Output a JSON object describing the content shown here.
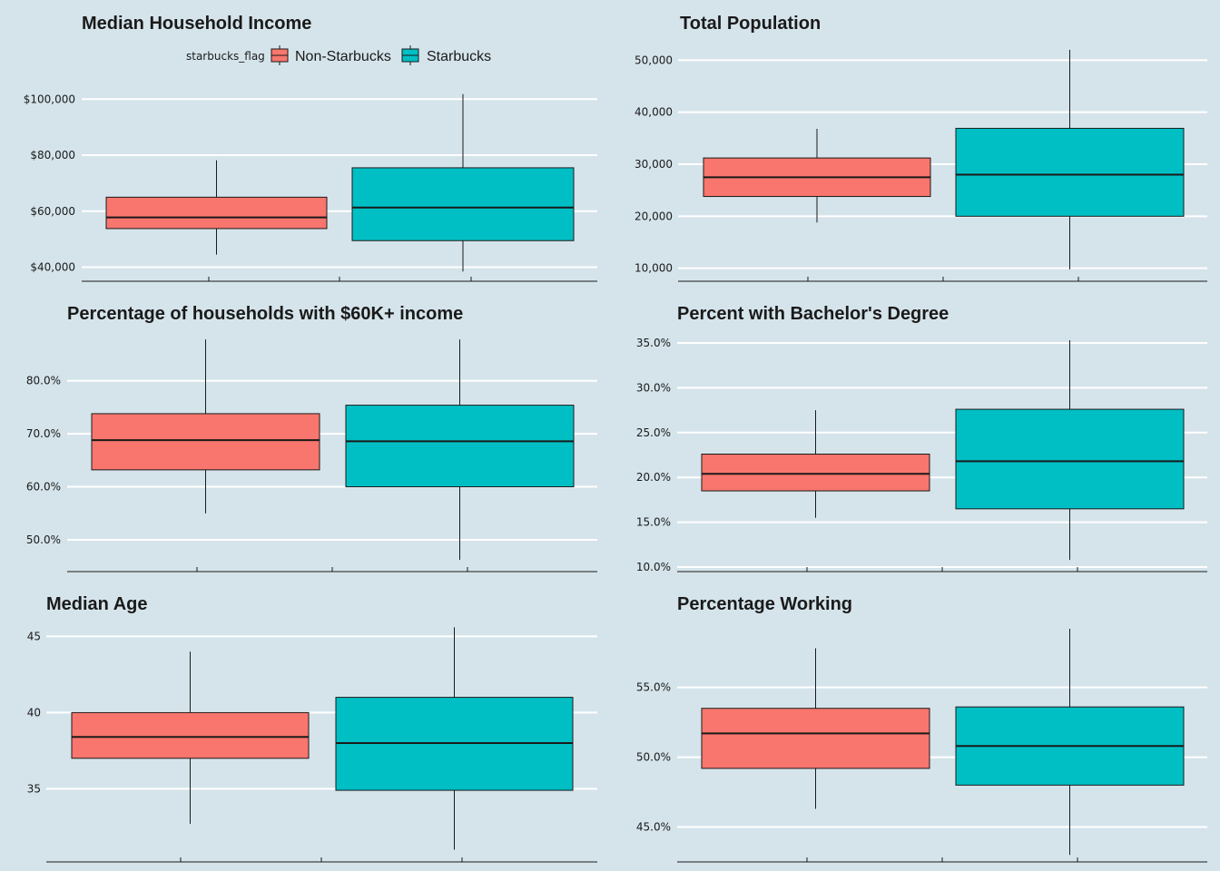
{
  "legend": {
    "title": "starbucks_flag",
    "items": [
      {
        "label": "Non-Starbucks",
        "color": "#f8766d"
      },
      {
        "label": "Starbucks",
        "color": "#00bfc4"
      }
    ]
  },
  "colors": {
    "background": "#d5e4eb",
    "grid": "#ffffff",
    "box_outline": "#1a1a1a",
    "axis": "#1a1a1a"
  },
  "chart_data": [
    {
      "type": "boxplot",
      "title": "Median Household Income",
      "ylim": [
        35000,
        103000
      ],
      "yticks": [
        40000,
        60000,
        80000,
        100000
      ],
      "ytick_labels": [
        "$40,000",
        "$60,000",
        "$80,000",
        "$100,000"
      ],
      "grid": true,
      "series": [
        {
          "name": "Non-Starbucks",
          "min": 44500,
          "q1": 53800,
          "median": 57800,
          "q3": 65000,
          "max": 78200
        },
        {
          "name": "Starbucks",
          "min": 38500,
          "q1": 49500,
          "median": 61300,
          "q3": 75500,
          "max": 101800
        }
      ]
    },
    {
      "type": "boxplot",
      "title": "Total Population",
      "ylim": [
        7500,
        52500
      ],
      "yticks": [
        10000,
        20000,
        30000,
        40000,
        50000
      ],
      "ytick_labels": [
        "10,000",
        "20,000",
        "30,000",
        "40,000",
        "50,000"
      ],
      "grid": true,
      "series": [
        {
          "name": "Non-Starbucks",
          "min": 18800,
          "q1": 23800,
          "median": 27500,
          "q3": 31200,
          "max": 36800
        },
        {
          "name": "Starbucks",
          "min": 9800,
          "q1": 20000,
          "median": 28000,
          "q3": 36900,
          "max": 52000
        }
      ]
    },
    {
      "type": "boxplot",
      "title": "Percentage of households with $60K+ income",
      "ylim": [
        44,
        88
      ],
      "yticks": [
        50,
        60,
        70,
        80
      ],
      "ytick_labels": [
        "50.0%",
        "60.0%",
        "70.0%",
        "80.0%"
      ],
      "grid": true,
      "series": [
        {
          "name": "Non-Starbucks",
          "min": 55.0,
          "q1": 63.2,
          "median": 68.8,
          "q3": 73.8,
          "max": 87.8
        },
        {
          "name": "Starbucks",
          "min": 46.2,
          "q1": 60.0,
          "median": 68.6,
          "q3": 75.4,
          "max": 87.8
        }
      ]
    },
    {
      "type": "boxplot",
      "title": "Percent with Bachelor's Degree",
      "ylim": [
        9.5,
        35.5
      ],
      "yticks": [
        10,
        15,
        20,
        25,
        30,
        35
      ],
      "ytick_labels": [
        "10.0%",
        "15.0%",
        "20.0%",
        "25.0%",
        "30.0%",
        "35.0%"
      ],
      "grid": true,
      "series": [
        {
          "name": "Non-Starbucks",
          "min": 15.5,
          "q1": 18.5,
          "median": 20.4,
          "q3": 22.6,
          "max": 27.5
        },
        {
          "name": "Starbucks",
          "min": 10.8,
          "q1": 16.5,
          "median": 21.8,
          "q3": 27.6,
          "max": 35.3
        }
      ]
    },
    {
      "type": "boxplot",
      "title": "Median Age",
      "ylim": [
        30.2,
        45.5
      ],
      "yticks": [
        35,
        40,
        45
      ],
      "ytick_labels": [
        "35",
        "40",
        "45"
      ],
      "grid": true,
      "series": [
        {
          "name": "Non-Starbucks",
          "min": 32.7,
          "q1": 37.0,
          "median": 38.4,
          "q3": 40.0,
          "max": 44.0
        },
        {
          "name": "Starbucks",
          "min": 31.0,
          "q1": 34.9,
          "median": 38.0,
          "q3": 41.0,
          "max": 45.6
        }
      ]
    },
    {
      "type": "boxplot",
      "title": "Percentage Working",
      "ylim": [
        42.5,
        59.2
      ],
      "yticks": [
        45,
        50,
        55
      ],
      "ytick_labels": [
        "45.0%",
        "50.0%",
        "55.0%"
      ],
      "grid": true,
      "series": [
        {
          "name": "Non-Starbucks",
          "min": 46.3,
          "q1": 49.2,
          "median": 51.7,
          "q3": 53.5,
          "max": 57.8
        },
        {
          "name": "Starbucks",
          "min": 43.0,
          "q1": 48.0,
          "median": 50.8,
          "q3": 53.6,
          "max": 59.2
        }
      ]
    }
  ]
}
